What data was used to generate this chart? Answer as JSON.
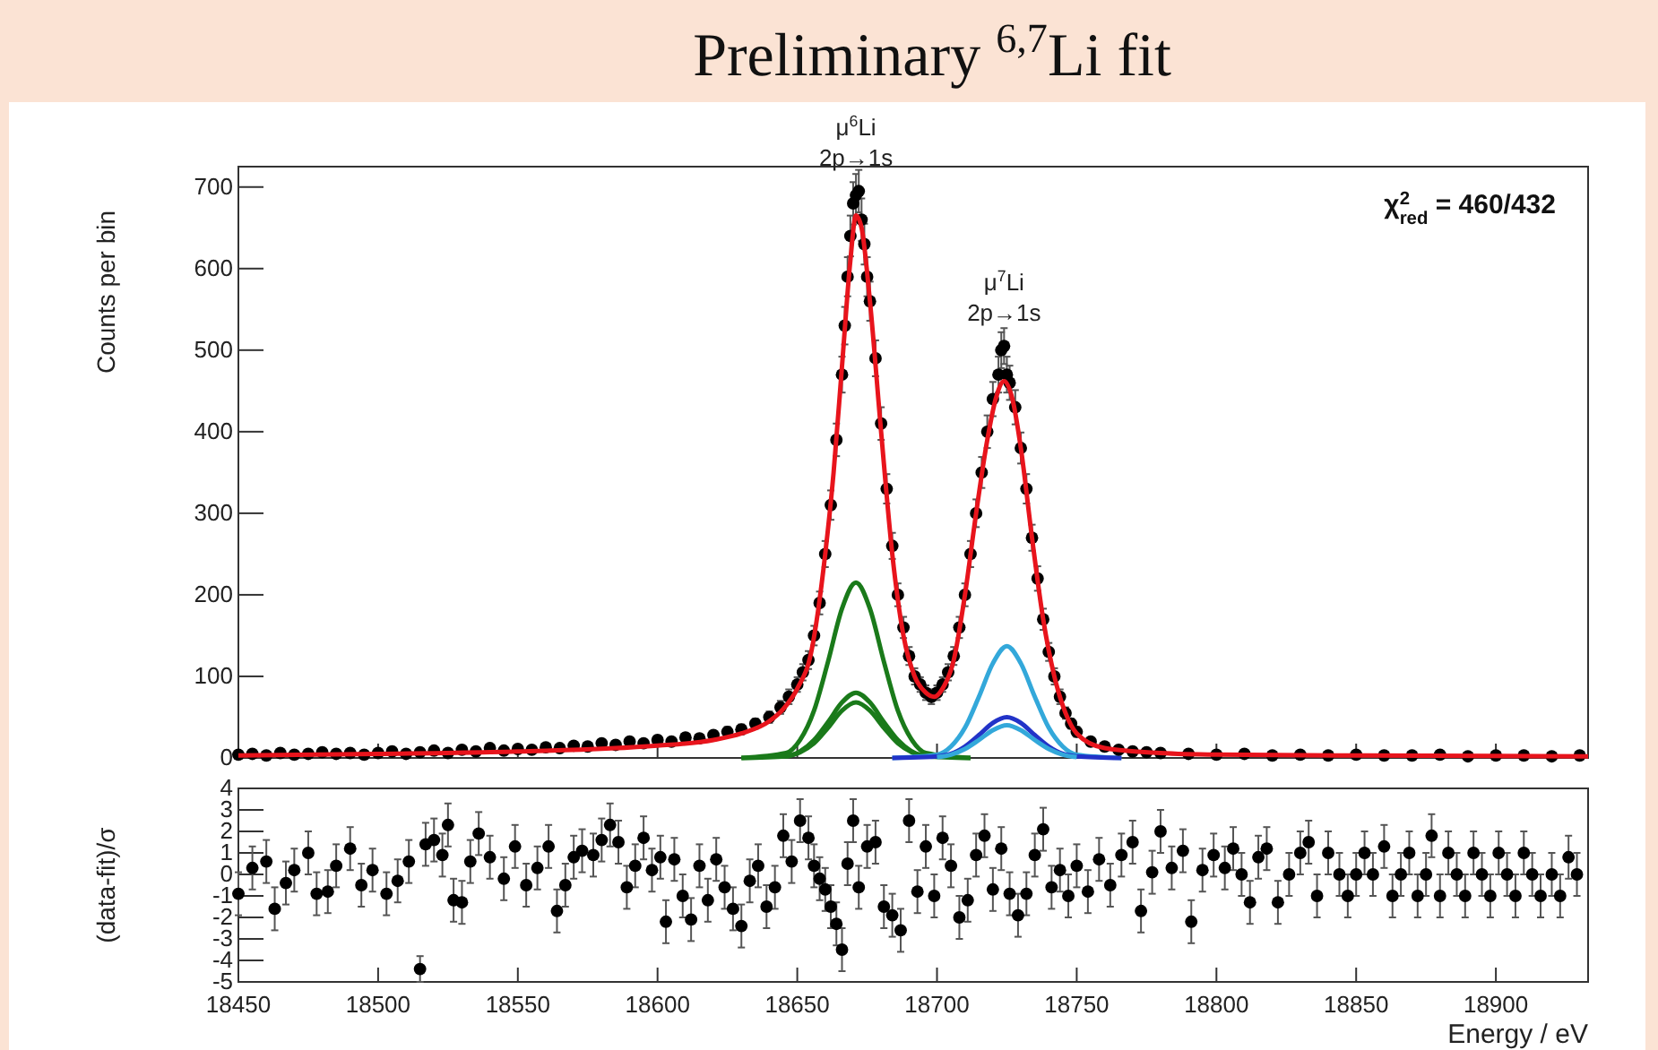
{
  "chart_data": [
    {
      "type": "scatter",
      "title": "Preliminary $^{6,7}$Li fit",
      "ylabel": "Counts per bin",
      "tick_labels": "y",
      "xlim": [
        18450,
        18933
      ],
      "ylim": [
        0,
        725
      ],
      "xticks": [
        18450,
        18500,
        18550,
        18600,
        18650,
        18700,
        18750,
        18800,
        18850,
        18900
      ],
      "yticks": [
        0,
        100,
        200,
        300,
        400,
        500,
        600,
        700
      ],
      "annotations": [
        {
          "text": "μ$^{6}$Li\n2p→1s",
          "x": 18671,
          "y": 695
        },
        {
          "text": "μ$^{7}$Li\n2p→1s",
          "x": 18724,
          "y": 505
        },
        "χ$^{2}$$_{red}$ = 460/432"
      ],
      "series": [
        {
          "type": "line",
          "marker": "none",
          "color": "#1a7a1a",
          "x": [
            18630,
            18646,
            18651,
            18656,
            18661,
            18666,
            18671,
            18676,
            18681,
            18686,
            18691,
            18696,
            18712
          ],
          "values": [
            0,
            6,
            22,
            58,
            118,
            183,
            215,
            183,
            118,
            58,
            22,
            6,
            0
          ]
        },
        {
          "type": "line",
          "marker": "none",
          "color": "#1a7a1a",
          "x": [
            18630,
            18646,
            18651,
            18656,
            18661,
            18666,
            18671,
            18676,
            18681,
            18686,
            18691,
            18696,
            18712
          ],
          "values": [
            0,
            2,
            8,
            22,
            44,
            68,
            80,
            68,
            44,
            22,
            8,
            2,
            0
          ]
        },
        {
          "type": "line",
          "marker": "none",
          "color": "#1a7a1a",
          "x": [
            18646,
            18651,
            18656,
            18661,
            18666,
            18671,
            18676,
            18681,
            18686,
            18691,
            18696
          ],
          "values": [
            2,
            7,
            18,
            37,
            58,
            68,
            58,
            37,
            18,
            7,
            2
          ]
        },
        {
          "type": "line",
          "marker": "none",
          "color": "#33a8da",
          "x": [
            18684,
            18700,
            18705,
            18710,
            18715,
            18720,
            18725,
            18730,
            18735,
            18740,
            18745,
            18750,
            18766
          ],
          "values": [
            0,
            4,
            14,
            37,
            75,
            116,
            137,
            116,
            75,
            37,
            14,
            4,
            0
          ]
        },
        {
          "type": "line",
          "marker": "none",
          "color": "#2233c8",
          "x": [
            18684,
            18700,
            18705,
            18710,
            18715,
            18720,
            18725,
            18730,
            18735,
            18740,
            18745,
            18750,
            18766
          ],
          "values": [
            0,
            2,
            5,
            14,
            28,
            43,
            50,
            43,
            28,
            14,
            5,
            2,
            0
          ]
        },
        {
          "type": "line",
          "marker": "none",
          "color": "#33a8da",
          "x": [
            18700,
            18705,
            18710,
            18715,
            18720,
            18725,
            18730,
            18735,
            18740,
            18745,
            18750
          ],
          "values": [
            1,
            4,
            11,
            22,
            34,
            40,
            34,
            22,
            11,
            4,
            1
          ]
        },
        {
          "marker": "circle",
          "color": "#000000",
          "x": [
            18450,
            18455,
            18460,
            18465,
            18470,
            18475,
            18480,
            18485,
            18490,
            18495,
            18500,
            18505,
            18510,
            18515,
            18520,
            18525,
            18530,
            18535,
            18540,
            18545,
            18550,
            18555,
            18560,
            18565,
            18570,
            18575,
            18580,
            18585,
            18590,
            18595,
            18600,
            18605,
            18610,
            18615,
            18620,
            18625,
            18630,
            18635,
            18640,
            18644,
            18647,
            18650,
            18652,
            18654,
            18656,
            18658,
            18660,
            18662,
            18664,
            18666,
            18667,
            18668,
            18669,
            18670,
            18671,
            18672,
            18673,
            18674,
            18675,
            18676,
            18678,
            18680,
            18682,
            18684,
            18686,
            18688,
            18690,
            18692,
            18694,
            18696,
            18698,
            18700,
            18702,
            18704,
            18706,
            18708,
            18710,
            18712,
            18714,
            18716,
            18718,
            18720,
            18722,
            18723,
            18724,
            18725,
            18726,
            18728,
            18730,
            18732,
            18734,
            18736,
            18738,
            18740,
            18742,
            18744,
            18746,
            18748,
            18750,
            18755,
            18760,
            18765,
            18770,
            18775,
            18780,
            18790,
            18800,
            18810,
            18820,
            18830,
            18840,
            18850,
            18860,
            18870,
            18880,
            18890,
            18900,
            18910,
            18920,
            18930
          ],
          "values": [
            4,
            5,
            3,
            6,
            4,
            5,
            7,
            5,
            6,
            4,
            6,
            8,
            5,
            7,
            9,
            6,
            10,
            8,
            12,
            9,
            11,
            10,
            13,
            12,
            15,
            14,
            18,
            16,
            20,
            18,
            22,
            20,
            25,
            24,
            28,
            32,
            35,
            42,
            50,
            62,
            75,
            90,
            105,
            120,
            150,
            190,
            250,
            310,
            390,
            470,
            530,
            590,
            640,
            680,
            690,
            695,
            660,
            630,
            590,
            560,
            490,
            410,
            330,
            260,
            200,
            160,
            125,
            100,
            90,
            80,
            75,
            80,
            90,
            105,
            125,
            160,
            200,
            250,
            300,
            350,
            400,
            440,
            470,
            500,
            505,
            470,
            460,
            430,
            380,
            330,
            270,
            220,
            170,
            130,
            100,
            75,
            55,
            42,
            32,
            20,
            14,
            10,
            8,
            7,
            6,
            5,
            4,
            5,
            3,
            4,
            3,
            4,
            3,
            3,
            4,
            2,
            3,
            3,
            2,
            3
          ],
          "errors": [
            2,
            2,
            2,
            2,
            2,
            2,
            3,
            2,
            2,
            2,
            2,
            3,
            2,
            3,
            3,
            2,
            3,
            3,
            3,
            3,
            3,
            3,
            4,
            3,
            4,
            4,
            4,
            4,
            4,
            4,
            5,
            4,
            5,
            5,
            5,
            6,
            6,
            6,
            7,
            8,
            9,
            9,
            10,
            11,
            12,
            14,
            16,
            18,
            20,
            22,
            23,
            24,
            25,
            26,
            26,
            26,
            26,
            25,
            24,
            24,
            22,
            20,
            18,
            16,
            14,
            13,
            11,
            10,
            9,
            9,
            9,
            9,
            9,
            10,
            11,
            13,
            14,
            16,
            17,
            19,
            20,
            21,
            22,
            22,
            22,
            22,
            21,
            21,
            19,
            18,
            16,
            15,
            13,
            11,
            10,
            9,
            7,
            6,
            6,
            4,
            4,
            3,
            3,
            3,
            2,
            2,
            2,
            2,
            2,
            2,
            2,
            2,
            2,
            2,
            2,
            1,
            2,
            2,
            1,
            2
          ]
        },
        {
          "type": "line",
          "marker": "none",
          "color": "#e8141c",
          "x": [
            18450,
            18500,
            18550,
            18600,
            18620,
            18630,
            18640,
            18645,
            18650,
            18655,
            18660,
            18663,
            18666,
            18669,
            18671,
            18673,
            18676,
            18680,
            18684,
            18688,
            18692,
            18696,
            18699,
            18702,
            18706,
            18710,
            18714,
            18718,
            18721,
            18724,
            18727,
            18730,
            18734,
            18738,
            18742,
            18746,
            18750,
            18760,
            18780,
            18800,
            18850,
            18933
          ],
          "values": [
            3,
            5,
            8,
            15,
            22,
            30,
            45,
            60,
            85,
            130,
            250,
            350,
            480,
            610,
            665,
            650,
            560,
            400,
            250,
            150,
            100,
            80,
            75,
            85,
            120,
            200,
            300,
            390,
            440,
            462,
            440,
            380,
            270,
            170,
            100,
            55,
            30,
            12,
            6,
            4,
            3,
            2
          ]
        }
      ]
    },
    {
      "type": "scatter",
      "xlabel": "Energy / eV",
      "ylabel": "(data-fit)/σ",
      "marker": "circle",
      "color": "#000000",
      "xlim": [
        18450,
        18933
      ],
      "ylim": [
        -5,
        4
      ],
      "xticks": [
        18450,
        18500,
        18550,
        18600,
        18650,
        18700,
        18750,
        18800,
        18850,
        18900
      ],
      "yticks": [
        -5,
        -4,
        -3,
        -2,
        -1,
        0,
        1,
        2,
        3,
        4
      ],
      "x": [
        18450,
        18455,
        18460,
        18463,
        18467,
        18470,
        18475,
        18478,
        18482,
        18485,
        18490,
        18494,
        18498,
        18503,
        18507,
        18511,
        18515,
        18517,
        18520,
        18523,
        18525,
        18527,
        18530,
        18533,
        18536,
        18540,
        18545,
        18549,
        18553,
        18557,
        18561,
        18564,
        18567,
        18570,
        18573,
        18577,
        18580,
        18583,
        18586,
        18589,
        18592,
        18595,
        18598,
        18601,
        18603,
        18606,
        18609,
        18612,
        18615,
        18618,
        18621,
        18624,
        18627,
        18630,
        18633,
        18636,
        18639,
        18642,
        18645,
        18648,
        18651,
        18654,
        18656,
        18658,
        18660,
        18662,
        18664,
        18666,
        18668,
        18670,
        18672,
        18675,
        18678,
        18681,
        18684,
        18687,
        18690,
        18693,
        18696,
        18699,
        18702,
        18705,
        18708,
        18711,
        18714,
        18717,
        18720,
        18723,
        18726,
        18729,
        18732,
        18735,
        18738,
        18741,
        18744,
        18747,
        18750,
        18754,
        18758,
        18762,
        18766,
        18770,
        18773,
        18777,
        18780,
        18784,
        18788,
        18791,
        18795,
        18799,
        18803,
        18806,
        18809,
        18812,
        18815,
        18818,
        18822,
        18826,
        18830,
        18833,
        18836,
        18840,
        18844,
        18847,
        18850,
        18853,
        18856,
        18860,
        18863,
        18866,
        18869,
        18872,
        18875,
        18877,
        18880,
        18883,
        18886,
        18889,
        18892,
        18895,
        18898,
        18901,
        18904,
        18907,
        18910,
        18913,
        18916,
        18920,
        18923,
        18926,
        18929
      ],
      "values": [
        -0.9,
        0.3,
        0.6,
        -1.6,
        -0.4,
        0.2,
        1,
        -0.9,
        -0.8,
        0.4,
        1.2,
        -0.5,
        0.2,
        -0.9,
        -0.3,
        0.6,
        -4.4,
        1.4,
        1.6,
        0.9,
        2.3,
        -1.2,
        -1.3,
        0.6,
        1.9,
        0.8,
        -0.2,
        1.3,
        -0.5,
        0.3,
        1.3,
        -1.7,
        -0.5,
        0.8,
        1.1,
        0.9,
        1.6,
        2.3,
        1.5,
        -0.6,
        0.4,
        1.7,
        0.2,
        0.8,
        -2.2,
        0.7,
        -1,
        -2.1,
        0.4,
        -1.2,
        0.7,
        -0.6,
        -1.6,
        -2.4,
        -0.3,
        0.4,
        -1.5,
        -0.6,
        1.8,
        0.6,
        2.5,
        1.7,
        0.4,
        -0.2,
        -0.7,
        -1.5,
        -2.3,
        -3.5,
        0.5,
        2.5,
        -0.6,
        1.3,
        1.5,
        -1.5,
        -1.9,
        -2.6,
        2.5,
        -0.8,
        1.3,
        -1,
        1.7,
        0.4,
        -2,
        -1.2,
        0.9,
        1.8,
        -0.7,
        1.2,
        -0.9,
        -1.9,
        -0.9,
        0.9,
        2.1,
        -0.6,
        0.2,
        -1,
        0.4,
        -0.8,
        0.7,
        -0.5,
        0.9,
        1.5,
        -1.7,
        0.1,
        2,
        0.3,
        1.1,
        -2.2,
        0.2,
        0.9,
        0.3,
        1.2,
        0,
        -1.3,
        0.8,
        1.2,
        -1.3,
        0,
        1,
        1.5,
        -1,
        1,
        0,
        -1,
        0,
        1,
        0,
        1.3,
        -1,
        0,
        1,
        -1,
        0,
        1.8,
        -1,
        1,
        0,
        -1,
        1,
        0,
        -1,
        1,
        0,
        -1,
        1,
        0,
        -1,
        0,
        -1,
        0.8,
        0
      ],
      "errors": [
        1,
        1,
        1,
        1,
        1,
        1,
        1,
        1,
        1,
        1,
        1,
        1,
        1,
        1,
        1,
        1,
        0.6,
        1,
        1,
        1,
        1,
        1,
        1,
        1,
        1,
        1,
        1,
        1,
        1,
        1,
        1,
        1,
        1,
        1,
        1,
        1,
        1,
        1,
        1,
        1,
        1,
        1,
        1,
        1,
        1,
        1,
        1,
        1,
        1,
        1,
        1,
        1,
        1,
        1,
        1,
        1,
        1,
        1,
        1,
        1,
        1,
        1,
        1,
        1,
        1,
        1,
        1,
        1,
        1,
        1,
        1,
        1,
        1,
        1,
        1,
        1,
        1,
        1,
        1,
        1,
        1,
        1,
        1,
        1,
        1,
        1,
        1,
        1,
        1,
        1,
        1,
        1,
        1,
        1,
        1,
        1,
        1,
        1,
        1,
        1,
        1,
        1,
        1,
        1,
        1,
        1,
        1,
        1,
        1,
        1,
        1,
        1,
        1,
        1,
        1,
        1,
        1,
        1,
        1,
        1,
        1,
        1,
        1,
        1,
        1,
        1,
        1,
        1,
        1,
        1,
        1,
        1,
        1,
        1,
        1,
        1,
        1,
        1,
        1,
        1,
        1,
        1,
        1,
        1,
        1,
        1,
        1,
        1,
        1,
        1,
        1
      ]
    }
  ]
}
